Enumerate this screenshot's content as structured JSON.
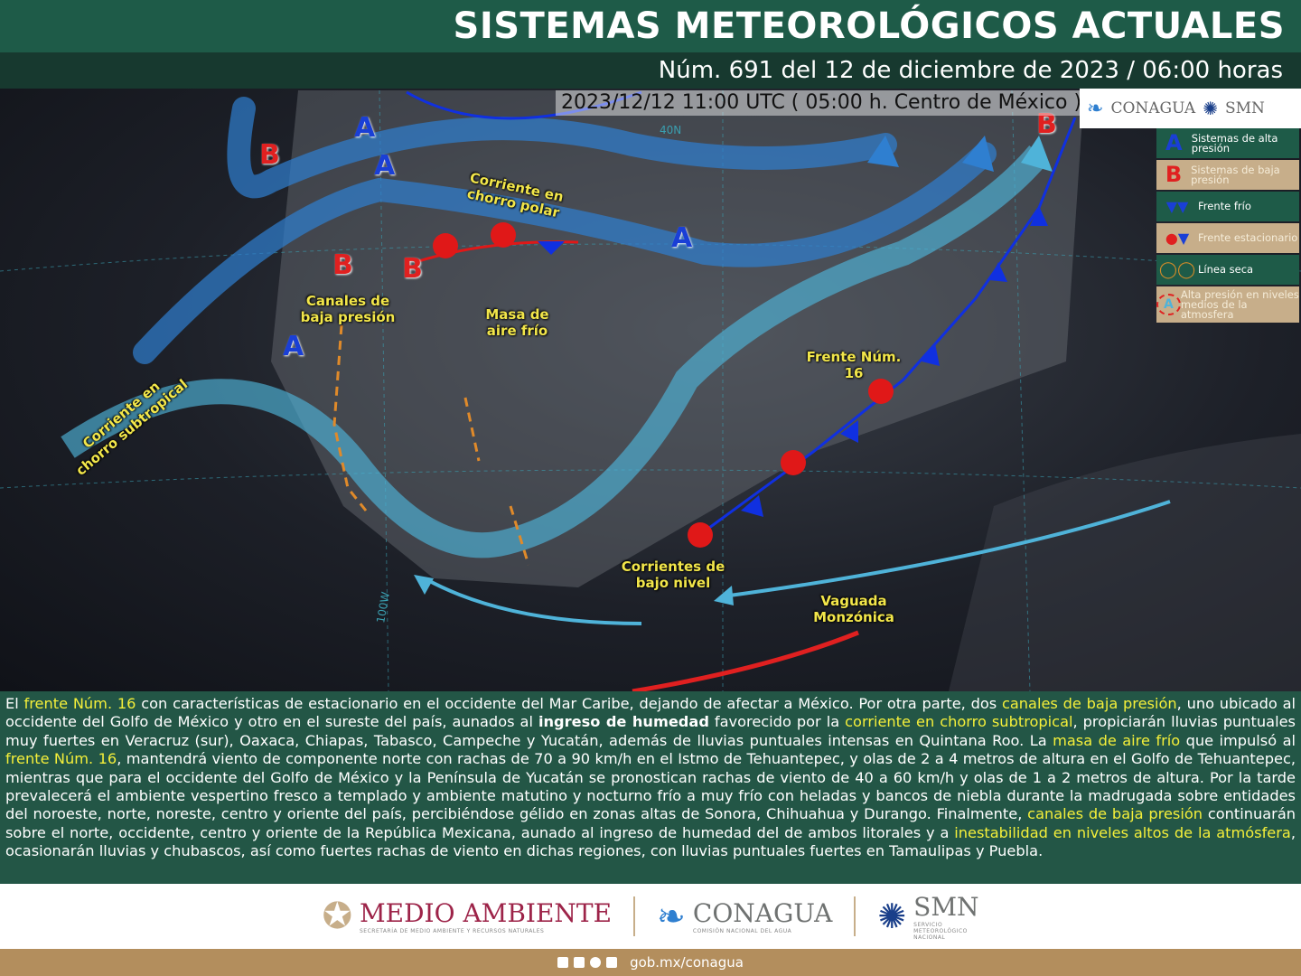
{
  "header": {
    "title": "SISTEMAS METEOROLÓGICOS ACTUALES",
    "subtitle": "Núm. 691 del 12 de diciembre de 2023 / 06:00 horas"
  },
  "map": {
    "timestamp": "2023/12/12 11:00 UTC ( 05:00 h. Centro de México )",
    "labels": {
      "polar_jet": "Corriente en chorro polar",
      "subtropical_jet": "Corriente en chorro subtropical",
      "low_channels": "Canales de baja presión",
      "cold_mass": "Masa de aire frío",
      "front": "Frente Núm. 16",
      "low_level": "Corrientes de bajo nivel",
      "monsoon": "Vaguada Monzónica"
    },
    "grid_labels": {
      "lat40": "40N",
      "lon100": "100W"
    },
    "high_letter": "A",
    "low_letter": "B",
    "colors": {
      "high": "#1a3fd6",
      "low": "#e02020",
      "jet": "#2f7fd0",
      "subjet": "#4fb3d9",
      "cold_front": "#1030e0",
      "warm": "#e01818",
      "trough": "#e08a2a"
    }
  },
  "logos": {
    "conagua": "CONAGUA",
    "smn": "SMN"
  },
  "legend": [
    {
      "icon": "A",
      "label": "Sistemas de alta presión"
    },
    {
      "icon": "B",
      "label": "Sistemas de baja presión"
    },
    {
      "icon": "cold-front",
      "label": "Frente frío"
    },
    {
      "icon": "stationary-front",
      "label": "Frente estacionario"
    },
    {
      "icon": "dry-line",
      "label": "Línea seca"
    },
    {
      "icon": "A",
      "label": "Alta presión en niveles medios de la atmosfera"
    }
  ],
  "description": [
    {
      "t": "El ",
      "s": ""
    },
    {
      "t": "frente Núm. 16",
      "s": "hl"
    },
    {
      "t": " con características de estacionario en el occidente del Mar Caribe, dejando de afectar a México. Por otra parte, dos ",
      "s": ""
    },
    {
      "t": "canales de baja presión",
      "s": "hl"
    },
    {
      "t": ", uno ubicado al occidente del Golfo de México y otro en el sureste del país, aunados al ",
      "s": ""
    },
    {
      "t": "ingreso de humedad",
      "s": "b"
    },
    {
      "t": " favorecido por la ",
      "s": ""
    },
    {
      "t": "corriente en chorro subtropical",
      "s": "hl"
    },
    {
      "t": ", propiciarán lluvias puntuales muy fuertes en Veracruz (sur), Oaxaca, Chiapas, Tabasco, Campeche y Yucatán, además de lluvias puntuales intensas en Quintana Roo. La ",
      "s": ""
    },
    {
      "t": "masa de aire frío",
      "s": "hl"
    },
    {
      "t": " que impulsó al ",
      "s": ""
    },
    {
      "t": "frente Núm. 16",
      "s": "hl"
    },
    {
      "t": ", mantendrá viento de componente norte con rachas de 70 a 90 km/h en el Istmo de Tehuantepec, y olas de 2 a 4 metros de altura en el Golfo de Tehuantepec, mientras que para el occidente del Golfo de México y la Península de Yucatán se pronostican rachas de viento de 40 a 60 km/h y olas de 1 a 2 metros de altura. Por la tarde prevalecerá el ambiente vespertino fresco a templado y ambiente matutino y nocturno frío a muy frío con heladas y bancos de niebla durante la madrugada sobre entidades del noroeste, norte, noreste, centro y oriente del país, percibiéndose gélido en zonas altas de Sonora, Chihuahua y Durango. Finalmente, ",
      "s": ""
    },
    {
      "t": "canales de baja presión",
      "s": "hl"
    },
    {
      "t": " continuarán sobre el norte, occidente, centro y oriente de la República Mexicana, aunado al ingreso de humedad del de ambos litorales y a ",
      "s": ""
    },
    {
      "t": "inestabilidad en niveles altos de la atmósfera",
      "s": "hl"
    },
    {
      "t": ", ocasionarán lluvias y chubascos, así como fuertes rachas de viento en dichas regiones, con lluvias puntuales fuertes en Tamaulipas y Puebla.",
      "s": ""
    }
  ],
  "footer": {
    "semarnat": "MEDIO AMBIENTE",
    "semarnat_sub": "SECRETARÍA DE MEDIO AMBIENTE Y RECURSOS NATURALES",
    "conagua": "CONAGUA",
    "conagua_sub": "COMISIÓN NACIONAL DEL AGUA",
    "smn": "SMN",
    "smn_sub": "SERVICIO METEOROLÓGICO NACIONAL",
    "url": "gob.mx/conagua",
    "colors": {
      "semarnat": "#9d2449",
      "conagua": "#6f7271",
      "bar": "#b38e5d"
    }
  }
}
